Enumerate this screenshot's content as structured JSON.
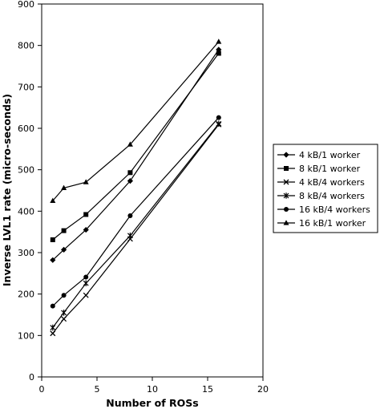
{
  "chart_data": {
    "type": "line",
    "title": "",
    "xlabel": "Number of ROSs",
    "ylabel": "Inverse LVL1 rate (micro-seconds)",
    "xlim": [
      0,
      20
    ],
    "ylim": [
      0,
      900
    ],
    "xticks": [
      0,
      5,
      10,
      15,
      20
    ],
    "yticks": [
      0,
      100,
      200,
      300,
      400,
      500,
      600,
      700,
      800,
      900
    ],
    "grid": false,
    "legend_position": "right",
    "series": [
      {
        "name": "4 kB/1 worker",
        "marker": "diamond",
        "x": [
          1,
          2,
          4,
          8,
          16
        ],
        "y": [
          282,
          307,
          355,
          473,
          790
        ]
      },
      {
        "name": "8 kB/1 worker",
        "marker": "square",
        "x": [
          1,
          2,
          4,
          8,
          16
        ],
        "y": [
          331,
          353,
          392,
          493,
          781
        ]
      },
      {
        "name": "4 kB/4 workers",
        "marker": "x",
        "x": [
          1,
          2,
          4,
          8,
          16
        ],
        "y": [
          105,
          140,
          197,
          333,
          609
        ]
      },
      {
        "name": "8 kB/4 workers",
        "marker": "star",
        "x": [
          1,
          2,
          4,
          8,
          16
        ],
        "y": [
          119,
          155,
          226,
          341,
          611
        ]
      },
      {
        "name": "16 kB/4 workers",
        "marker": "circle",
        "x": [
          1,
          2,
          4,
          8,
          16
        ],
        "y": [
          171,
          197,
          241,
          389,
          626
        ]
      },
      {
        "name": "16 kB/1 worker",
        "marker": "triangle",
        "x": [
          1,
          2,
          4,
          8,
          16
        ],
        "y": [
          425,
          456,
          470,
          561,
          809
        ]
      }
    ]
  }
}
